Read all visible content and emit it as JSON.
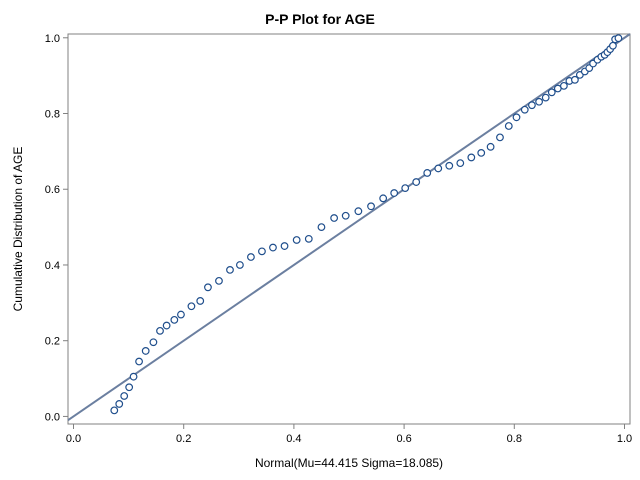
{
  "chart_data": {
    "type": "scatter",
    "title": "P-P Plot for AGE",
    "xlabel": "Normal(Mu=44.415 Sigma=18.085)",
    "ylabel": "Cumulative Distribution of AGE",
    "xlim": [
      -0.01,
      1.01
    ],
    "ylim": [
      -0.02,
      1.01
    ],
    "xticks": [
      0.0,
      0.2,
      0.4,
      0.6,
      0.8,
      1.0
    ],
    "yticks": [
      0.0,
      0.2,
      0.4,
      0.6,
      0.8,
      1.0
    ],
    "xtick_labels": [
      "0.0",
      "0.2",
      "0.4",
      "0.6",
      "0.8",
      "1.0"
    ],
    "ytick_labels": [
      "0.0",
      "0.2",
      "0.4",
      "0.6",
      "0.8",
      "1.0"
    ],
    "grid": false,
    "reference_line": {
      "from": [
        -0.01,
        -0.01
      ],
      "to": [
        1.01,
        1.01
      ]
    },
    "colors": {
      "marker": "#1f4e8c",
      "reference_line": "#6b7fa0",
      "frame": "#808080"
    },
    "points": [
      {
        "x": 0.074,
        "y": 0.016
      },
      {
        "x": 0.083,
        "y": 0.033
      },
      {
        "x": 0.092,
        "y": 0.054
      },
      {
        "x": 0.101,
        "y": 0.077
      },
      {
        "x": 0.109,
        "y": 0.105
      },
      {
        "x": 0.119,
        "y": 0.145
      },
      {
        "x": 0.131,
        "y": 0.173
      },
      {
        "x": 0.145,
        "y": 0.196
      },
      {
        "x": 0.157,
        "y": 0.226
      },
      {
        "x": 0.169,
        "y": 0.24
      },
      {
        "x": 0.183,
        "y": 0.255
      },
      {
        "x": 0.195,
        "y": 0.269
      },
      {
        "x": 0.214,
        "y": 0.291
      },
      {
        "x": 0.23,
        "y": 0.305
      },
      {
        "x": 0.244,
        "y": 0.341
      },
      {
        "x": 0.264,
        "y": 0.358
      },
      {
        "x": 0.284,
        "y": 0.387
      },
      {
        "x": 0.302,
        "y": 0.4
      },
      {
        "x": 0.322,
        "y": 0.421
      },
      {
        "x": 0.342,
        "y": 0.436
      },
      {
        "x": 0.362,
        "y": 0.446
      },
      {
        "x": 0.383,
        "y": 0.45
      },
      {
        "x": 0.405,
        "y": 0.466
      },
      {
        "x": 0.427,
        "y": 0.469
      },
      {
        "x": 0.45,
        "y": 0.5
      },
      {
        "x": 0.473,
        "y": 0.524
      },
      {
        "x": 0.494,
        "y": 0.53
      },
      {
        "x": 0.517,
        "y": 0.542
      },
      {
        "x": 0.54,
        "y": 0.555
      },
      {
        "x": 0.562,
        "y": 0.576
      },
      {
        "x": 0.582,
        "y": 0.59
      },
      {
        "x": 0.602,
        "y": 0.603
      },
      {
        "x": 0.622,
        "y": 0.619
      },
      {
        "x": 0.642,
        "y": 0.643
      },
      {
        "x": 0.662,
        "y": 0.655
      },
      {
        "x": 0.682,
        "y": 0.662
      },
      {
        "x": 0.702,
        "y": 0.669
      },
      {
        "x": 0.722,
        "y": 0.684
      },
      {
        "x": 0.74,
        "y": 0.696
      },
      {
        "x": 0.757,
        "y": 0.712
      },
      {
        "x": 0.774,
        "y": 0.737
      },
      {
        "x": 0.79,
        "y": 0.767
      },
      {
        "x": 0.804,
        "y": 0.79
      },
      {
        "x": 0.819,
        "y": 0.81
      },
      {
        "x": 0.832,
        "y": 0.822
      },
      {
        "x": 0.845,
        "y": 0.831
      },
      {
        "x": 0.857,
        "y": 0.842
      },
      {
        "x": 0.868,
        "y": 0.856
      },
      {
        "x": 0.879,
        "y": 0.866
      },
      {
        "x": 0.89,
        "y": 0.873
      },
      {
        "x": 0.9,
        "y": 0.886
      },
      {
        "x": 0.91,
        "y": 0.889
      },
      {
        "x": 0.919,
        "y": 0.902
      },
      {
        "x": 0.928,
        "y": 0.911
      },
      {
        "x": 0.936,
        "y": 0.92
      },
      {
        "x": 0.943,
        "y": 0.932
      },
      {
        "x": 0.951,
        "y": 0.942
      },
      {
        "x": 0.958,
        "y": 0.95
      },
      {
        "x": 0.964,
        "y": 0.955
      },
      {
        "x": 0.969,
        "y": 0.962
      },
      {
        "x": 0.974,
        "y": 0.97
      },
      {
        "x": 0.979,
        "y": 0.979
      },
      {
        "x": 0.983,
        "y": 0.996
      },
      {
        "x": 0.989,
        "y": 0.999
      }
    ]
  }
}
